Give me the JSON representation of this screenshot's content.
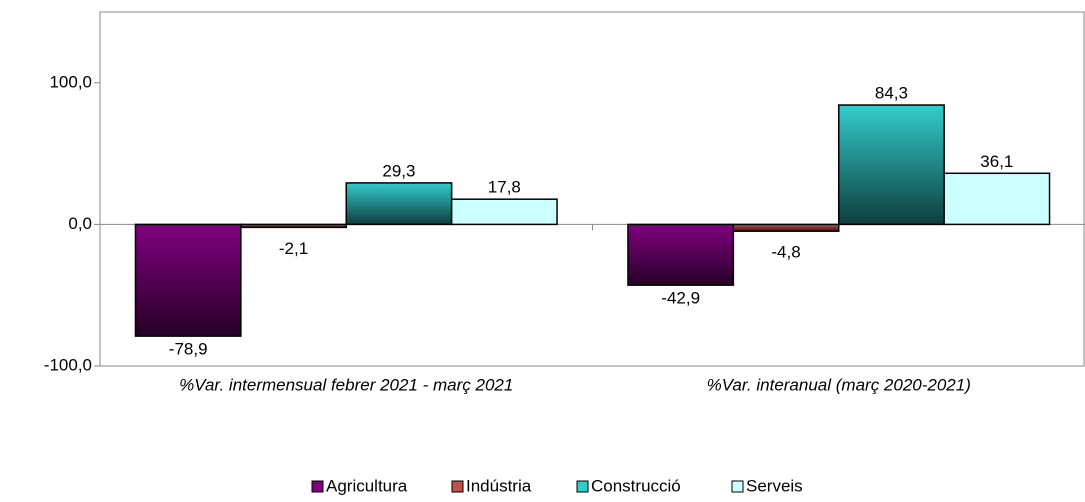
{
  "chart_data": {
    "type": "bar",
    "categories": [
      "%Var. intermensual febrer 2021 - març 2021",
      "%Var. interanual (març 2020-2021)"
    ],
    "series": [
      {
        "name": "Agricultura",
        "color": "#800080",
        "values": [
          -78.9,
          -42.9
        ],
        "value_labels": [
          "-78,9",
          "-42,9"
        ]
      },
      {
        "name": "Indústria",
        "color": "#c0504d",
        "values": [
          -2.1,
          -4.8
        ],
        "value_labels": [
          "-2,1",
          "-4,8"
        ]
      },
      {
        "name": "Construcció",
        "color": "#33cccc",
        "values": [
          29.3,
          84.3
        ],
        "value_labels": [
          "29,3",
          "84,3"
        ]
      },
      {
        "name": "Serveis",
        "color": "#ccffff",
        "values": [
          17.8,
          36.1
        ],
        "value_labels": [
          "17,8",
          "36,1"
        ]
      }
    ],
    "ylim": [
      -100,
      150
    ],
    "yticks": [
      {
        "value": -100,
        "label": "-100,0"
      },
      {
        "value": 0,
        "label": "0,0"
      },
      {
        "value": 100,
        "label": "100,0"
      }
    ]
  }
}
